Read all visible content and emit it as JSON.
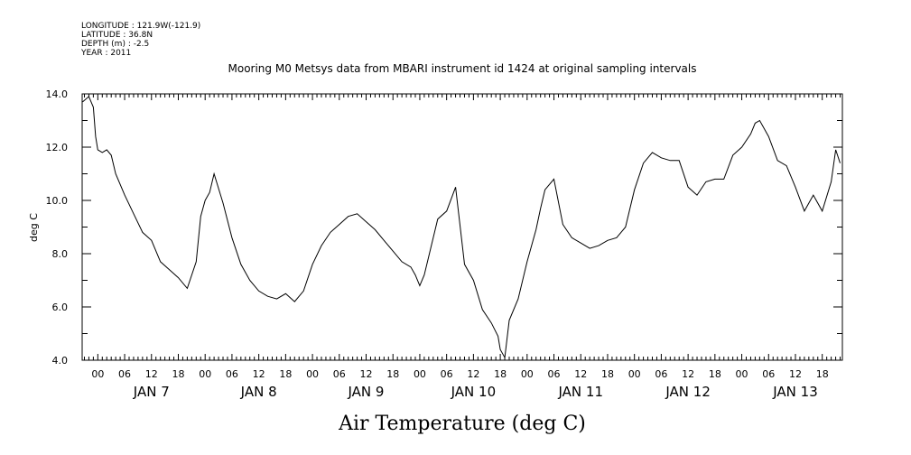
{
  "header": {
    "longitude": "LONGITUDE : 121.9W(-121.9)",
    "latitude": "LATITUDE : 36.8N",
    "depth": "DEPTH (m) : -2.5",
    "year": "YEAR : 2011"
  },
  "chart_data": {
    "type": "line",
    "title": "Mooring M0 Metsys data from MBARI instrument id 1424 at original sampling intervals",
    "xlabel": "Air Temperature (deg C)",
    "ylabel": "deg C",
    "ylim": [
      4.0,
      14.0
    ],
    "y_ticks": [
      "4.0",
      "6.0",
      "8.0",
      "10.0",
      "12.0",
      "14.0"
    ],
    "x_range_hours": [
      -3.5,
      166.5
    ],
    "hour_ticks": [
      "00",
      "06",
      "12",
      "18",
      "00",
      "06",
      "12",
      "18",
      "00",
      "06",
      "12",
      "18",
      "00",
      "06",
      "12",
      "18",
      "00",
      "06",
      "12",
      "18",
      "00",
      "06",
      "12",
      "18",
      "00",
      "06",
      "12",
      "18"
    ],
    "day_labels": [
      "JAN  7",
      "JAN  8",
      "JAN  9",
      "JAN 10",
      "JAN 11",
      "JAN 12",
      "JAN 13"
    ],
    "grid": false,
    "series": [
      {
        "x": [
          -3.4,
          -2,
          -1,
          -0.5,
          0,
          1,
          2,
          3,
          4,
          6,
          8,
          10,
          12,
          14,
          16,
          18,
          20,
          22,
          23,
          24,
          25,
          26,
          28,
          30,
          32,
          34,
          36,
          38,
          40,
          42,
          44,
          46,
          48,
          50,
          52,
          54,
          56,
          58,
          60,
          62,
          64,
          66,
          68,
          70,
          71,
          72,
          73,
          74,
          76,
          78,
          80,
          82,
          84,
          86,
          88,
          89.5,
          90,
          91,
          92,
          94,
          96,
          98,
          99,
          100,
          102,
          104,
          106,
          108,
          110,
          112,
          114,
          116,
          118,
          120,
          122,
          124,
          126,
          128,
          130,
          132,
          134,
          136,
          138,
          140,
          142,
          144,
          146,
          147,
          148,
          150,
          152,
          154,
          156,
          158,
          160,
          162,
          164,
          165,
          166
        ],
        "values": [
          13.7,
          13.9,
          13.5,
          12.4,
          11.9,
          11.8,
          11.9,
          11.7,
          11.0,
          10.2,
          9.5,
          8.8,
          8.5,
          7.7,
          7.4,
          7.1,
          6.7,
          7.7,
          9.4,
          10.0,
          10.3,
          11.0,
          9.9,
          8.6,
          7.6,
          7.0,
          6.6,
          6.4,
          6.3,
          6.5,
          6.2,
          6.6,
          7.6,
          8.3,
          8.8,
          9.1,
          9.4,
          9.5,
          9.2,
          8.9,
          8.5,
          8.1,
          7.7,
          7.5,
          7.2,
          6.8,
          7.2,
          7.9,
          9.3,
          9.6,
          10.5,
          7.6,
          7.0,
          5.9,
          5.4,
          4.9,
          4.4,
          4.1,
          5.5,
          6.3,
          7.7,
          8.9,
          9.7,
          10.4,
          10.8,
          9.1,
          8.6,
          8.4,
          8.2,
          8.3,
          8.5,
          8.6,
          9.0,
          10.4,
          11.4,
          11.8,
          11.6,
          11.5,
          11.5,
          10.5,
          10.2,
          10.7,
          10.8,
          10.8,
          11.7,
          12.0,
          12.5,
          12.9,
          13.0,
          12.4,
          11.5,
          11.3,
          10.5,
          9.6,
          10.2,
          9.6,
          10.7,
          11.9,
          11.4
        ]
      }
    ]
  }
}
